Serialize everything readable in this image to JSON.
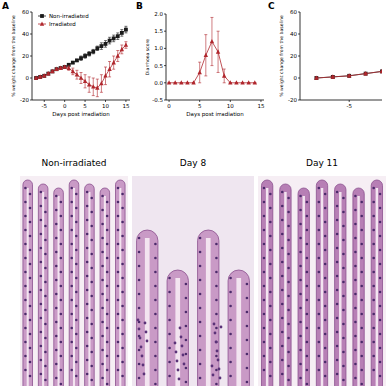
{
  "chart_data": [
    {
      "type": "line",
      "title": "A",
      "x_label": "Days post irradiation",
      "y_label": "% weight change from the baseline",
      "x": [
        -7,
        -6,
        -5,
        -4,
        -3,
        -2,
        -1,
        0,
        1,
        2,
        3,
        4,
        5,
        6,
        7,
        8,
        9,
        10,
        11,
        12,
        13,
        14,
        15
      ],
      "series": [
        {
          "name": "Non-irradiated",
          "color": "#1a1a1a",
          "marker": "square",
          "values": [
            0,
            1,
            2,
            4,
            6,
            8,
            9,
            10,
            12,
            14,
            16,
            18,
            20,
            22,
            24,
            27,
            29,
            31,
            34,
            36,
            38,
            41,
            44
          ],
          "errors": [
            1,
            1,
            1,
            1,
            1,
            1,
            1,
            1,
            1,
            1,
            1,
            2,
            2,
            2,
            2,
            2,
            3,
            3,
            3,
            3,
            3,
            3,
            3
          ]
        },
        {
          "name": "Irradiated",
          "color": "#b0272d",
          "marker": "triangle",
          "values": [
            0,
            1,
            2,
            4,
            6,
            8,
            9,
            10,
            9,
            6,
            3,
            0,
            -3,
            -6,
            -8,
            -9,
            -5,
            2,
            8,
            14,
            20,
            26,
            30
          ],
          "errors": [
            1,
            1,
            1,
            1,
            1,
            1,
            1,
            1,
            2,
            3,
            4,
            5,
            6,
            7,
            8,
            8,
            8,
            8,
            7,
            6,
            5,
            4,
            3
          ]
        }
      ],
      "xlim": [
        -8,
        16
      ],
      "xticks": [
        -5,
        0,
        5,
        10,
        15
      ],
      "ylim": [
        -20,
        60
      ],
      "yticks": [
        -20,
        0,
        20,
        40,
        60
      ],
      "legend": "upper left"
    },
    {
      "type": "line",
      "title": "B",
      "x_label": "Days post irradiation",
      "y_label": "Diarrhoea score",
      "x": [
        0,
        1,
        2,
        3,
        4,
        5,
        6,
        7,
        8,
        9,
        10,
        11,
        12,
        13,
        14
      ],
      "series": [
        {
          "color": "#b0272d",
          "marker": "triangle",
          "values": [
            0,
            0,
            0,
            0,
            0,
            0.3,
            0.8,
            1.2,
            0.9,
            0.2,
            0,
            0,
            0,
            0,
            0
          ],
          "errors": [
            0,
            0,
            0,
            0,
            0,
            0.3,
            0.6,
            0.7,
            0.6,
            0.2,
            0,
            0,
            0,
            0,
            0
          ]
        }
      ],
      "xlim": [
        -0.5,
        15.5
      ],
      "xticks": [
        0,
        5,
        10,
        15
      ],
      "ylim": [
        -0.5,
        2
      ],
      "yticks": [
        {
          "value": -0.5,
          "label": "-0.5"
        },
        {
          "value": 0,
          "label": "0.0"
        },
        {
          "value": 0.5,
          "label": "0.5"
        },
        {
          "value": 1,
          "label": "1.0"
        },
        {
          "value": 1.5,
          "label": "1.5"
        },
        {
          "value": 2,
          "label": "2.0"
        }
      ]
    },
    {
      "type": "line",
      "title": "C",
      "y_label": "% weight change from the baseline",
      "x": [
        -7,
        -6,
        -5,
        -4,
        -3
      ],
      "series": [
        {
          "color": "#1a1a1a",
          "marker": "square",
          "values": [
            0,
            1,
            2,
            4,
            6
          ],
          "errors": [
            1,
            1,
            1,
            1,
            1
          ]
        },
        {
          "color": "#b0272d",
          "marker": "triangle",
          "values": [
            0,
            1,
            2,
            4,
            6
          ],
          "errors": [
            1,
            1,
            1,
            1,
            1
          ]
        }
      ],
      "xlim": [
        -8,
        -3
      ],
      "xticks": [
        -5
      ],
      "ylim": [
        -20,
        60
      ],
      "yticks": [
        -20,
        0,
        20,
        40,
        60
      ]
    }
  ],
  "histology": {
    "labels": [
      "Non-irradiated",
      "Day 8",
      "Day 11"
    ]
  }
}
